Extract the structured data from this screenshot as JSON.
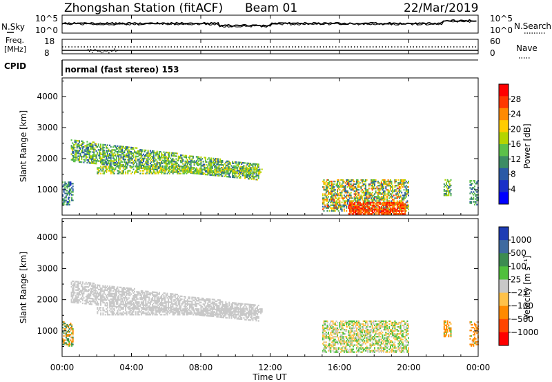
{
  "header": {
    "title": "Zhongshan Station (fitACF)",
    "beam": "Beam 01",
    "date": "22/Mar/2019"
  },
  "top_panels": {
    "nsky_label": "N.Sky",
    "nsky_ticks": [
      "10^5",
      "10^0"
    ],
    "nsearch_label": "N.Search",
    "nsearch_ticks": [
      "10^5",
      "10^0"
    ],
    "freq_label_1": "Freq.",
    "freq_label_2": "[MHz]",
    "freq_ticks": [
      "18",
      "8"
    ],
    "nave_label": "Nave",
    "nave_ticks": [
      "60",
      "0"
    ],
    "cpid_label": "CPID",
    "cpid_text": "normal (fast stereo) 153"
  },
  "chart_data": [
    {
      "type": "heatmap",
      "name": "power",
      "ylabel": "Slant Range [km]",
      "yticks": [
        "4000",
        "3000",
        "2000",
        "1000"
      ],
      "ylim": [
        180,
        4600
      ],
      "xlim_hours": [
        0,
        24
      ],
      "colorbar_label": "Power [dB]",
      "colorbar_ticks": [
        "28",
        "24",
        "20",
        "16",
        "12",
        "8",
        "4"
      ],
      "colorbar_colors": [
        "#ff0000",
        "#ff3800",
        "#ff8a00",
        "#ffcc00",
        "#b4d400",
        "#5cc04a",
        "#3c8c64",
        "#2a5aa6",
        "#1a2fc8",
        "#0000ff"
      ],
      "echo_regions": [
        {
          "start": 0.5,
          "end": 11.3,
          "range_start": [
            2600,
            1900
          ],
          "range_end": [
            1800,
            1300
          ],
          "power": [
            6,
            20
          ],
          "density": 0.6
        },
        {
          "start": 2.0,
          "end": 11.5,
          "range_start": [
            1750,
            1500
          ],
          "range_end": [
            1700,
            1500
          ],
          "power": [
            10,
            22
          ],
          "density": 0.5
        },
        {
          "start": 0.0,
          "end": 0.6,
          "range_start": [
            1300,
            500
          ],
          "range_end": [
            1200,
            500
          ],
          "power": [
            4,
            16
          ],
          "density": 0.5
        },
        {
          "start": 15.0,
          "end": 20.0,
          "range_start": [
            1300,
            300
          ],
          "range_end": [
            1300,
            300
          ],
          "power": [
            6,
            28
          ],
          "density": 0.55
        },
        {
          "start": 16.5,
          "end": 19.8,
          "range_start": [
            600,
            200
          ],
          "range_end": [
            600,
            200
          ],
          "power": [
            24,
            32
          ],
          "density": 0.7
        },
        {
          "start": 22.0,
          "end": 22.4,
          "range_start": [
            1300,
            800
          ],
          "range_end": [
            1300,
            800
          ],
          "power": [
            8,
            20
          ],
          "density": 0.5
        },
        {
          "start": 23.5,
          "end": 24.0,
          "range_start": [
            1300,
            500
          ],
          "range_end": [
            1300,
            500
          ],
          "power": [
            6,
            16
          ],
          "density": 0.4
        }
      ]
    },
    {
      "type": "heatmap",
      "name": "velocity",
      "ylabel": "Slant Range [km]",
      "yticks": [
        "4000",
        "3000",
        "2000",
        "1000"
      ],
      "ylim": [
        180,
        4600
      ],
      "xlim_hours": [
        0,
        24
      ],
      "xticks": [
        "00:00",
        "04:00",
        "08:00",
        "12:00",
        "16:00",
        "20:00",
        "00:00"
      ],
      "xlabel": "Time UT",
      "colorbar_label": "Velocity [m s⁻¹]",
      "colorbar_ticks": [
        "1000",
        "500",
        "100",
        "25",
        "−25",
        "−100",
        "−500",
        "−1000"
      ],
      "colorbar_colors": [
        "#1e3cb4",
        "#3e6aa0",
        "#3c8c50",
        "#50c03c",
        "#c8c8c8",
        "#ffc24a",
        "#ff8a00",
        "#ff4600",
        "#ff0000"
      ],
      "echo_regions": [
        {
          "start": 0.5,
          "end": 11.3,
          "range_start": [
            2600,
            1900
          ],
          "range_end": [
            1800,
            1300
          ],
          "velocity": [
            -25,
            25
          ],
          "density": 0.6
        },
        {
          "start": 2.0,
          "end": 11.5,
          "range_start": [
            1750,
            1500
          ],
          "range_end": [
            1700,
            1500
          ],
          "velocity": [
            -25,
            25
          ],
          "density": 0.5
        },
        {
          "start": 0.0,
          "end": 0.6,
          "range_start": [
            1300,
            500
          ],
          "range_end": [
            1200,
            500
          ],
          "velocity": [
            -500,
            500
          ],
          "density": 0.5
        },
        {
          "start": 15.0,
          "end": 20.0,
          "range_start": [
            1300,
            300
          ],
          "range_end": [
            1300,
            300
          ],
          "velocity": [
            -100,
            100
          ],
          "density": 0.55
        },
        {
          "start": 22.0,
          "end": 22.4,
          "range_start": [
            1300,
            800
          ],
          "range_end": [
            1300,
            800
          ],
          "velocity": [
            -500,
            100
          ],
          "density": 0.5
        },
        {
          "start": 23.5,
          "end": 24.0,
          "range_start": [
            1300,
            500
          ],
          "range_end": [
            1300,
            500
          ],
          "velocity": [
            -500,
            100
          ],
          "density": 0.4
        }
      ]
    }
  ]
}
